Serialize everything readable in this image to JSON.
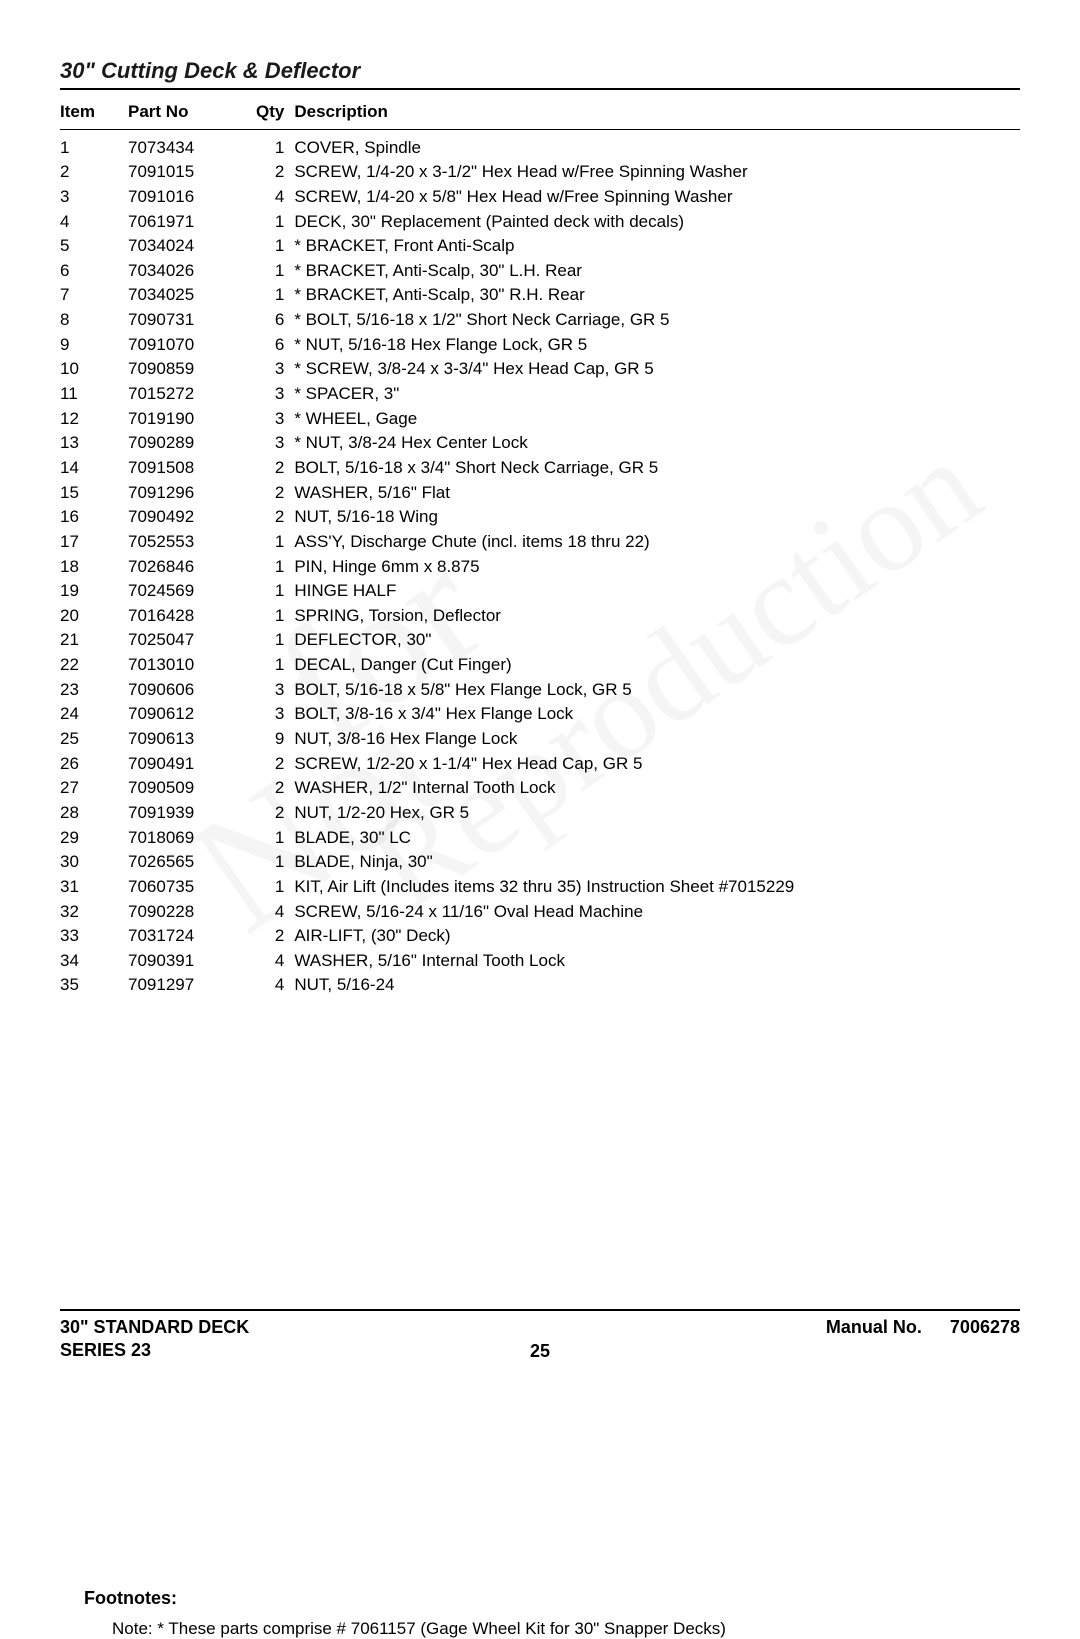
{
  "section_title": "30\" Cutting Deck & Deflector",
  "columns": {
    "item": "Item",
    "part_no": "Part No",
    "qty": "Qty",
    "description": "Description"
  },
  "rows": [
    {
      "item": "1",
      "part_no": "7073434",
      "qty": "1",
      "desc": "COVER, Spindle"
    },
    {
      "item": "2",
      "part_no": "7091015",
      "qty": "2",
      "desc": "SCREW, 1/4-20 x 3-1/2\" Hex Head w/Free Spinning Washer"
    },
    {
      "item": "3",
      "part_no": "7091016",
      "qty": "4",
      "desc": "SCREW, 1/4-20 x 5/8\" Hex Head w/Free Spinning Washer"
    },
    {
      "item": "4",
      "part_no": "7061971",
      "qty": "1",
      "desc": "DECK, 30\" Replacement (Painted deck with decals)"
    },
    {
      "item": "5",
      "part_no": "7034024",
      "qty": "1",
      "desc": "* BRACKET, Front Anti-Scalp"
    },
    {
      "item": "6",
      "part_no": "7034026",
      "qty": "1",
      "desc": "* BRACKET, Anti-Scalp, 30\" L.H. Rear"
    },
    {
      "item": "7",
      "part_no": "7034025",
      "qty": "1",
      "desc": "* BRACKET, Anti-Scalp, 30\" R.H. Rear"
    },
    {
      "item": "8",
      "part_no": "7090731",
      "qty": "6",
      "desc": "* BOLT, 5/16-18 x 1/2\" Short Neck Carriage, GR 5"
    },
    {
      "item": "9",
      "part_no": "7091070",
      "qty": "6",
      "desc": "* NUT, 5/16-18 Hex Flange Lock, GR 5"
    },
    {
      "item": "10",
      "part_no": "7090859",
      "qty": "3",
      "desc": "* SCREW, 3/8-24 x 3-3/4\" Hex Head Cap, GR 5"
    },
    {
      "item": "11",
      "part_no": "7015272",
      "qty": "3",
      "desc": "* SPACER, 3\""
    },
    {
      "item": "12",
      "part_no": "7019190",
      "qty": "3",
      "desc": "* WHEEL, Gage"
    },
    {
      "item": "13",
      "part_no": "7090289",
      "qty": "3",
      "desc": "* NUT, 3/8-24 Hex Center Lock"
    },
    {
      "item": "14",
      "part_no": "7091508",
      "qty": "2",
      "desc": "BOLT, 5/16-18 x 3/4\" Short Neck Carriage, GR 5"
    },
    {
      "item": "15",
      "part_no": "7091296",
      "qty": "2",
      "desc": "WASHER, 5/16\" Flat"
    },
    {
      "item": "16",
      "part_no": "7090492",
      "qty": "2",
      "desc": "NUT, 5/16-18 Wing"
    },
    {
      "item": "17",
      "part_no": "7052553",
      "qty": "1",
      "desc": "ASS'Y, Discharge Chute (incl. items 18 thru 22)"
    },
    {
      "item": "18",
      "part_no": "7026846",
      "qty": "1",
      "desc": "PIN, Hinge 6mm x 8.875"
    },
    {
      "item": "19",
      "part_no": "7024569",
      "qty": "1",
      "desc": "HINGE HALF"
    },
    {
      "item": "20",
      "part_no": "7016428",
      "qty": "1",
      "desc": "SPRING, Torsion, Deflector"
    },
    {
      "item": "21",
      "part_no": "7025047",
      "qty": "1",
      "desc": "DEFLECTOR, 30\""
    },
    {
      "item": "22",
      "part_no": "7013010",
      "qty": "1",
      "desc": "DECAL, Danger (Cut Finger)"
    },
    {
      "item": "23",
      "part_no": "7090606",
      "qty": "3",
      "desc": "BOLT, 5/16-18 x 5/8\" Hex Flange Lock, GR 5"
    },
    {
      "item": "24",
      "part_no": "7090612",
      "qty": "3",
      "desc": "BOLT, 3/8-16 x 3/4\" Hex Flange Lock"
    },
    {
      "item": "25",
      "part_no": "7090613",
      "qty": "9",
      "desc": "NUT, 3/8-16 Hex Flange Lock"
    },
    {
      "item": "26",
      "part_no": "7090491",
      "qty": "2",
      "desc": "SCREW, 1/2-20 x 1-1/4\" Hex Head Cap, GR 5"
    },
    {
      "item": "27",
      "part_no": "7090509",
      "qty": "2",
      "desc": "WASHER, 1/2\" Internal Tooth Lock"
    },
    {
      "item": "28",
      "part_no": "7091939",
      "qty": "2",
      "desc": "NUT, 1/2-20 Hex, GR 5"
    },
    {
      "item": "29",
      "part_no": "7018069",
      "qty": "1",
      "desc": "BLADE, 30\" LC"
    },
    {
      "item": "30",
      "part_no": "7026565",
      "qty": "1",
      "desc": "BLADE, Ninja, 30\""
    },
    {
      "item": "31",
      "part_no": "7060735",
      "qty": "1",
      "desc": "KIT, Air Lift (Includes items 32 thru 35) Instruction Sheet #7015229"
    },
    {
      "item": "32",
      "part_no": "7090228",
      "qty": "4",
      "desc": "SCREW, 5/16-24 x 11/16\" Oval Head Machine"
    },
    {
      "item": "33",
      "part_no": "7031724",
      "qty": "2",
      "desc": "AIR-LIFT, (30\" Deck)"
    },
    {
      "item": "34",
      "part_no": "7090391",
      "qty": "4",
      "desc": "WASHER, 5/16\" Internal Tooth Lock"
    },
    {
      "item": "35",
      "part_no": "7091297",
      "qty": "4",
      "desc": "NUT, 5/16-24"
    }
  ],
  "watermark": {
    "not": "Not",
    "for": "for",
    "reproduction": "Reproduction"
  },
  "footnotes": {
    "heading": "Footnotes:",
    "body": "Note: * These parts comprise # 7061157 (Gage Wheel Kit for 30\" Snapper Decks)"
  },
  "footer": {
    "left_line1": "30\" STANDARD DECK",
    "left_line2": "SERIES 23",
    "page_no": "25",
    "manual_label": "Manual No.",
    "manual_no": "7006278"
  }
}
